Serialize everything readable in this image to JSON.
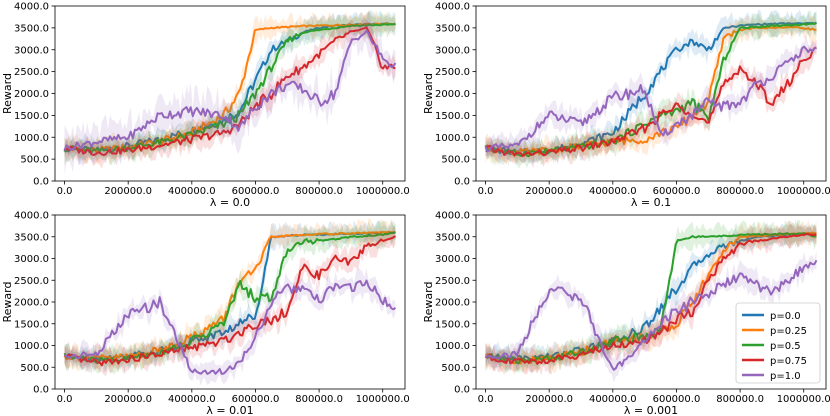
{
  "chart_data": [
    {
      "type": "line",
      "xlabel": "λ = 0.0",
      "ylabel": "Reward",
      "xlim": [
        -30000,
        1070000
      ],
      "ylim": [
        0,
        4000
      ],
      "xticks": [
        "0.0",
        "200000.0",
        "400000.0",
        "600000.0",
        "800000.0",
        "1000000.0"
      ],
      "yticks": [
        "0.0",
        "500.0",
        "1000.0",
        "1500.0",
        "2000.0",
        "2500.0",
        "3000.0",
        "3500.0",
        "4000.0"
      ],
      "x": [
        0,
        100000,
        200000,
        300000,
        400000,
        500000,
        550000,
        600000,
        650000,
        700000,
        750000,
        800000,
        850000,
        900000,
        950000,
        1000000,
        1040000
      ],
      "series": [
        {
          "name": "p=0.0",
          "values": [
            750,
            700,
            800,
            950,
            1150,
            1400,
            1600,
            2300,
            3000,
            3200,
            3400,
            3500,
            3550,
            3570,
            3580,
            3590,
            3590
          ]
        },
        {
          "name": "p=0.25",
          "values": [
            750,
            700,
            780,
            900,
            1100,
            1500,
            2000,
            3450,
            3500,
            3520,
            3540,
            3550,
            3560,
            3570,
            3580,
            3590,
            3590
          ]
        },
        {
          "name": "p=0.5",
          "values": [
            750,
            680,
            760,
            880,
            1050,
            1300,
            1500,
            2000,
            2600,
            3200,
            3400,
            3450,
            3500,
            3550,
            3560,
            3570,
            3580
          ]
        },
        {
          "name": "p=0.75",
          "values": [
            750,
            650,
            700,
            820,
            950,
            1100,
            1300,
            1700,
            2000,
            2400,
            2600,
            2900,
            3200,
            3400,
            3500,
            2600,
            2600
          ]
        },
        {
          "name": "p=1.0",
          "values": [
            750,
            900,
            1000,
            1500,
            1600,
            1500,
            1200,
            1700,
            2000,
            2200,
            2100,
            1800,
            2000,
            3200,
            3400,
            2800,
            2600
          ]
        }
      ]
    },
    {
      "type": "line",
      "xlabel": "λ = 0.1",
      "ylabel": "Reward",
      "xlim": [
        -30000,
        1070000
      ],
      "ylim": [
        0,
        4000
      ],
      "xticks": [
        "0.0",
        "200000.0",
        "400000.0",
        "600000.0",
        "800000.0",
        "1000000.0"
      ],
      "yticks": [
        "0.0",
        "500.0",
        "1000.0",
        "1500.0",
        "2000.0",
        "2500.0",
        "3000.0",
        "3500.0",
        "4000.0"
      ],
      "x": [
        0,
        100000,
        200000,
        300000,
        400000,
        500000,
        550000,
        600000,
        650000,
        700000,
        750000,
        800000,
        850000,
        900000,
        950000,
        1000000,
        1040000
      ],
      "series": [
        {
          "name": "p=0.0",
          "values": [
            750,
            650,
            700,
            850,
            1100,
            2000,
            2500,
            3000,
            3200,
            3000,
            3500,
            3550,
            3580,
            3590,
            3600,
            3600,
            3610
          ]
        },
        {
          "name": "p=0.25",
          "values": [
            750,
            650,
            700,
            800,
            900,
            950,
            1100,
            1200,
            1500,
            1800,
            3300,
            3450,
            3500,
            3500,
            3520,
            3500,
            3450
          ]
        },
        {
          "name": "p=0.5",
          "values": [
            750,
            620,
            680,
            780,
            900,
            1300,
            1500,
            1600,
            1800,
            1400,
            2800,
            3500,
            3520,
            3550,
            3560,
            3580,
            3600
          ]
        },
        {
          "name": "p=0.75",
          "values": [
            750,
            600,
            650,
            750,
            900,
            1200,
            1500,
            1700,
            1600,
            1300,
            2200,
            2600,
            2200,
            1800,
            2200,
            2800,
            3000
          ]
        },
        {
          "name": "p=1.0",
          "values": [
            750,
            800,
            1500,
            1300,
            1900,
            2100,
            1000,
            1300,
            1500,
            1800,
            1700,
            1800,
            2200,
            2400,
            2700,
            3000,
            3000
          ]
        }
      ]
    },
    {
      "type": "line",
      "xlabel": "λ = 0.01",
      "ylabel": "Reward",
      "xlim": [
        -30000,
        1070000
      ],
      "ylim": [
        0,
        4000
      ],
      "xticks": [
        "0.0",
        "200000.0",
        "400000.0",
        "600000.0",
        "800000.0",
        "1000000.0"
      ],
      "yticks": [
        "0.0",
        "500.0",
        "1000.0",
        "1500.0",
        "2000.0",
        "2500.0",
        "3000.0",
        "3500.0",
        "4000.0"
      ],
      "x": [
        0,
        100000,
        200000,
        300000,
        400000,
        500000,
        550000,
        600000,
        650000,
        700000,
        750000,
        800000,
        850000,
        900000,
        950000,
        1000000,
        1040000
      ],
      "series": [
        {
          "name": "p=0.0",
          "values": [
            750,
            700,
            750,
            900,
            1100,
            1300,
            1500,
            1700,
            3500,
            3520,
            3540,
            3550,
            3560,
            3570,
            3580,
            3590,
            3600
          ]
        },
        {
          "name": "p=0.25",
          "values": [
            750,
            700,
            750,
            900,
            1200,
            1600,
            2500,
            2700,
            3500,
            3520,
            3540,
            3560,
            3570,
            3580,
            3590,
            3600,
            3600
          ]
        },
        {
          "name": "p=0.5",
          "values": [
            750,
            650,
            700,
            850,
            1100,
            1500,
            2400,
            2100,
            2100,
            3200,
            3400,
            3400,
            3450,
            3500,
            3520,
            3550,
            3600
          ]
        },
        {
          "name": "p=0.75",
          "values": [
            750,
            600,
            680,
            800,
            950,
            1100,
            1300,
            1500,
            1600,
            1800,
            2800,
            2600,
            3000,
            2900,
            3300,
            3400,
            3500
          ]
        },
        {
          "name": "p=1.0",
          "values": [
            750,
            800,
            1700,
            2000,
            400,
            400,
            600,
            1200,
            2000,
            2300,
            2300,
            2000,
            2400,
            2300,
            2500,
            2000,
            1900
          ]
        }
      ]
    },
    {
      "type": "line",
      "xlabel": "λ = 0.001",
      "ylabel": "Reward",
      "xlim": [
        -30000,
        1070000
      ],
      "ylim": [
        0,
        4000
      ],
      "xticks": [
        "0.0",
        "200000.0",
        "400000.0",
        "600000.0",
        "800000.0",
        "1000000.0"
      ],
      "yticks": [
        "0.0",
        "500.0",
        "1000.0",
        "1500.0",
        "2000.0",
        "2500.0",
        "3000.0",
        "3500.0",
        "4000.0"
      ],
      "legend": "lower-right",
      "x": [
        0,
        100000,
        200000,
        300000,
        400000,
        500000,
        550000,
        600000,
        650000,
        700000,
        750000,
        800000,
        850000,
        900000,
        950000,
        1000000,
        1040000
      ],
      "series": [
        {
          "name": "p=0.0",
          "values": [
            750,
            700,
            750,
            900,
            1100,
            1400,
            1900,
            2300,
            2800,
            3100,
            3300,
            3400,
            3500,
            3520,
            3550,
            3570,
            3580
          ]
        },
        {
          "name": "p=0.25",
          "values": [
            750,
            650,
            700,
            850,
            1100,
            1200,
            1300,
            1500,
            2000,
            2600,
            3200,
            3500,
            3520,
            3540,
            3560,
            3580,
            3590
          ]
        },
        {
          "name": "p=0.5",
          "values": [
            750,
            650,
            700,
            850,
            1100,
            1200,
            1400,
            3400,
            3500,
            3500,
            3520,
            3540,
            3550,
            3560,
            3570,
            3580,
            3500
          ]
        },
        {
          "name": "p=0.75",
          "values": [
            750,
            620,
            650,
            800,
            1000,
            1100,
            1300,
            1600,
            1800,
            2500,
            3000,
            3300,
            3400,
            3450,
            3500,
            3550,
            3550
          ]
        },
        {
          "name": "p=1.0",
          "values": [
            750,
            800,
            2300,
            2100,
            400,
            1100,
            1500,
            1800,
            2000,
            2200,
            2400,
            2600,
            2400,
            2200,
            2500,
            2800,
            2900
          ]
        }
      ]
    }
  ],
  "colors": {
    "p=0.0": "#1f77b4",
    "p=0.25": "#ff7f0e",
    "p=0.5": "#2ca02c",
    "p=0.75": "#d62728",
    "p=1.0": "#9467bd"
  }
}
